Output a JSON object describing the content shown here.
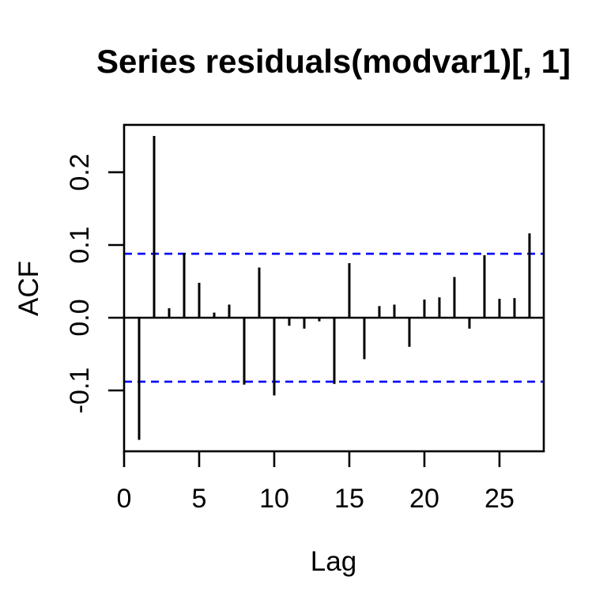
{
  "chart_data": {
    "type": "bar",
    "subtype": "acf-spike-plot",
    "title": "Series residuals(modvar1)[, 1]",
    "xlabel": "Lag",
    "ylabel": "ACF",
    "lags": [
      1,
      2,
      3,
      4,
      5,
      6,
      7,
      8,
      9,
      10,
      11,
      12,
      13,
      14,
      15,
      16,
      17,
      18,
      19,
      20,
      21,
      22,
      23,
      24,
      25,
      26,
      27
    ],
    "values": [
      -0.168,
      0.25,
      0.013,
      0.089,
      0.048,
      0.007,
      0.018,
      -0.092,
      0.069,
      -0.107,
      -0.011,
      -0.015,
      -0.005,
      -0.091,
      0.075,
      -0.057,
      0.016,
      0.018,
      -0.04,
      0.025,
      0.028,
      0.056,
      -0.015,
      0.086,
      0.026,
      0.027,
      0.116
    ],
    "xlim": [
      0,
      27.95
    ],
    "ylim": [
      -0.1837,
      0.2652
    ],
    "x_ticks": [
      0,
      5,
      10,
      15,
      20,
      25
    ],
    "x_tick_labels": [
      "0",
      "5",
      "10",
      "15",
      "20",
      "25"
    ],
    "y_ticks": [
      -0.1,
      0.0,
      0.1,
      0.2
    ],
    "y_tick_labels": [
      "-0.1",
      "0.0",
      "0.1",
      "0.2"
    ],
    "zero_line": true,
    "confidence_bands": {
      "upper": 0.088,
      "lower": -0.088,
      "style": "dashed",
      "color": "#0000FF"
    },
    "grid": false,
    "legend": null,
    "colors": {
      "spike": "#000000",
      "box": "#000000",
      "axis": "#000000",
      "background": "#FFFFFF",
      "confidence": "#0000FF"
    }
  }
}
